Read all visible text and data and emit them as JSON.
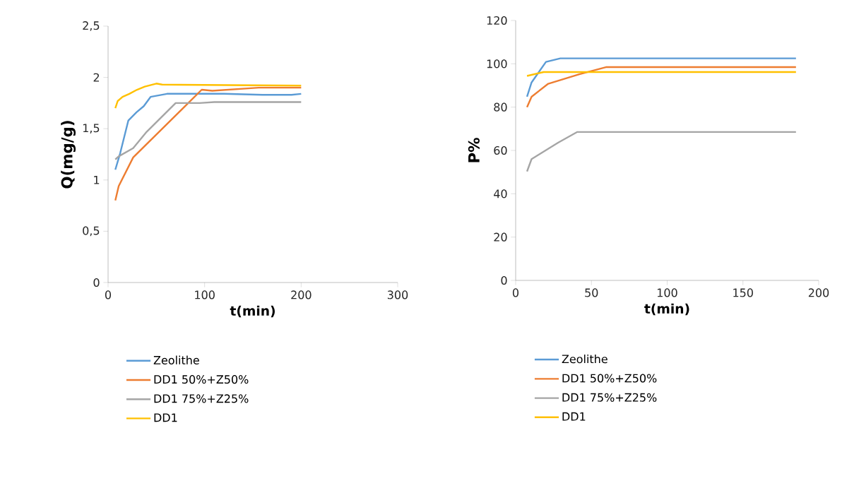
{
  "chart_data": [
    {
      "type": "line",
      "xlabel": "t(min)",
      "ylabel": "Q(mg/g)",
      "xlim": [
        0,
        300
      ],
      "xticks": [
        0,
        100,
        200,
        300
      ],
      "ylim": [
        0,
        2.5
      ],
      "yticks": [
        0,
        {
          "value": 0.5,
          "label": "0,5"
        },
        1,
        {
          "value": 1.5,
          "label": "1,5"
        },
        2,
        {
          "value": 2.5,
          "label": "2,5"
        }
      ],
      "legend": "bottom",
      "series": [
        {
          "name": "Zeolithe",
          "color": "#5b9bd5",
          "x": [
            7.5,
            12.5,
            21,
            29.5,
            37,
            44,
            61,
            120,
            160,
            190,
            200
          ],
          "values": [
            1.1,
            1.26,
            1.58,
            1.66,
            1.72,
            1.81,
            1.84,
            1.84,
            1.83,
            1.83,
            1.84
          ]
        },
        {
          "name": "DD1 50%+Z50%",
          "color": "#ed7d31",
          "x": [
            7.5,
            11,
            26,
            97,
            108,
            156,
            200
          ],
          "values": [
            0.8,
            0.94,
            1.22,
            1.88,
            1.87,
            1.9,
            1.9
          ]
        },
        {
          "name": "DD1 75%+Z25%",
          "color": "#a5a5a5",
          "x": [
            7.5,
            11,
            26,
            40,
            70,
            95,
            110,
            200
          ],
          "values": [
            1.2,
            1.23,
            1.31,
            1.47,
            1.75,
            1.75,
            1.76,
            1.76
          ]
        },
        {
          "name": "DD1",
          "color": "#ffc000",
          "x": [
            7.5,
            10,
            15,
            22,
            30,
            38,
            50,
            56,
            200
          ],
          "values": [
            1.7,
            1.77,
            1.81,
            1.84,
            1.88,
            1.91,
            1.94,
            1.93,
            1.92
          ]
        }
      ]
    },
    {
      "type": "line",
      "xlabel": "t(min)",
      "ylabel": "P%",
      "xlim": [
        0,
        200
      ],
      "xticks": [
        0,
        50,
        100,
        150,
        200
      ],
      "ylim": [
        0,
        120
      ],
      "yticks": [
        0,
        20,
        40,
        60,
        80,
        100,
        120
      ],
      "legend": "bottom",
      "series": [
        {
          "name": "Zeolithe",
          "color": "#5b9bd5",
          "x": [
            7.5,
            10.5,
            20,
            29.5,
            185
          ],
          "values": [
            84.8,
            91.4,
            100.9,
            102.5,
            102.5
          ]
        },
        {
          "name": "DD1 50%+Z50%",
          "color": "#ed7d31",
          "x": [
            7.5,
            10.5,
            21.5,
            42,
            60,
            185
          ],
          "values": [
            80,
            84.8,
            90.8,
            95.2,
            98.5,
            98.5
          ]
        },
        {
          "name": "DD1 75%+Z25%",
          "color": "#a5a5a5",
          "x": [
            7.5,
            10.5,
            28,
            40.5,
            185
          ],
          "values": [
            50.3,
            56,
            63.6,
            68.5,
            68.5
          ]
        },
        {
          "name": "DD1",
          "color": "#ffc000",
          "x": [
            7.5,
            18.5,
            185
          ],
          "values": [
            94.4,
            96.2,
            96.2
          ]
        }
      ]
    }
  ]
}
